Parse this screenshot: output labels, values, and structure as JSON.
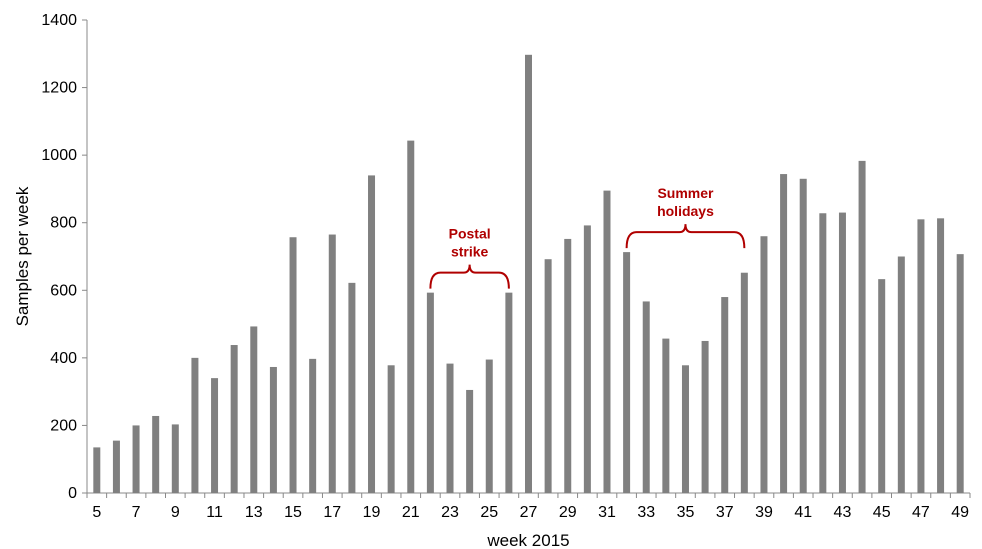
{
  "chart_data": {
    "type": "bar",
    "xlabel": "week 2015",
    "ylabel": "Samples per week",
    "ylim": [
      0,
      1400
    ],
    "yticks": [
      0,
      200,
      400,
      600,
      800,
      1000,
      1200,
      1400
    ],
    "grid": false,
    "bar_color": "#808080",
    "annotation_color": "#b00000",
    "categories": [
      "5",
      "6",
      "7",
      "8",
      "9",
      "10",
      "11",
      "12",
      "13",
      "14",
      "15",
      "16",
      "17",
      "18",
      "19",
      "20",
      "21",
      "22",
      "23",
      "24",
      "25",
      "26",
      "27",
      "28",
      "29",
      "30",
      "31",
      "32",
      "33",
      "34",
      "35",
      "36",
      "37",
      "38",
      "39",
      "40",
      "41",
      "42",
      "43",
      "44",
      "45",
      "46",
      "47",
      "48",
      "49"
    ],
    "tick_labels": [
      "5",
      "7",
      "9",
      "11",
      "13",
      "15",
      "17",
      "19",
      "21",
      "23",
      "25",
      "27",
      "29",
      "31",
      "33",
      "35",
      "37",
      "39",
      "41",
      "43",
      "45",
      "47",
      "49"
    ],
    "values": [
      135,
      155,
      200,
      228,
      203,
      400,
      340,
      438,
      493,
      373,
      757,
      397,
      765,
      622,
      940,
      378,
      1043,
      593,
      383,
      305,
      395,
      593,
      1297,
      692,
      752,
      792,
      895,
      713,
      567,
      457,
      378,
      450,
      580,
      652,
      760,
      944,
      930,
      828,
      830,
      983,
      633,
      700,
      810,
      813,
      707
    ],
    "annotations": [
      {
        "lines": [
          "Postal",
          "strike"
        ],
        "from": "22",
        "to": "26"
      },
      {
        "lines": [
          "Summer",
          "holidays"
        ],
        "from": "32",
        "to": "38"
      }
    ]
  }
}
